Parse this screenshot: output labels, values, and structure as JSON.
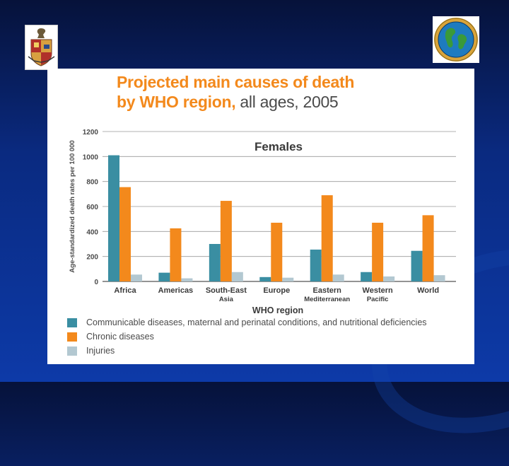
{
  "slide": {
    "colors": {
      "background_top": "#06123a",
      "background_bottom": "#0d3aa8"
    }
  },
  "logos": {
    "left": {
      "name": "university-crest"
    },
    "right": {
      "name": "globe-seal"
    }
  },
  "chart_data": {
    "type": "bar",
    "title_bold_line1": "Projected main causes of death",
    "title_bold_line2": "by WHO region,",
    "title_light": "all ages, 2005",
    "subtitle": "Females",
    "xlabel": "WHO region",
    "ylabel": "Age-standardized death rates per 100 000",
    "ylim": [
      0,
      1200
    ],
    "yticks": [
      0,
      200,
      400,
      600,
      800,
      1000,
      1200
    ],
    "grid": true,
    "categories": [
      {
        "line1": "Africa",
        "line2": ""
      },
      {
        "line1": "Americas",
        "line2": ""
      },
      {
        "line1": "South-East",
        "line2": "Asia"
      },
      {
        "line1": "Europe",
        "line2": ""
      },
      {
        "line1": "Eastern",
        "line2": "Mediterranean"
      },
      {
        "line1": "Western",
        "line2": "Pacific"
      },
      {
        "line1": "World",
        "line2": ""
      }
    ],
    "series": [
      {
        "name": "Communicable diseases, maternal and perinatal conditions, and nutritional deficiencies",
        "color": "#3a8ea2",
        "values": [
          1010,
          70,
          300,
          35,
          255,
          75,
          245
        ]
      },
      {
        "name": "Chronic diseases",
        "color": "#f3891c",
        "values": [
          755,
          425,
          645,
          470,
          690,
          470,
          530
        ]
      },
      {
        "name": "Injuries",
        "color": "#b3c8d1",
        "values": [
          55,
          25,
          75,
          30,
          55,
          40,
          50
        ]
      }
    ]
  }
}
